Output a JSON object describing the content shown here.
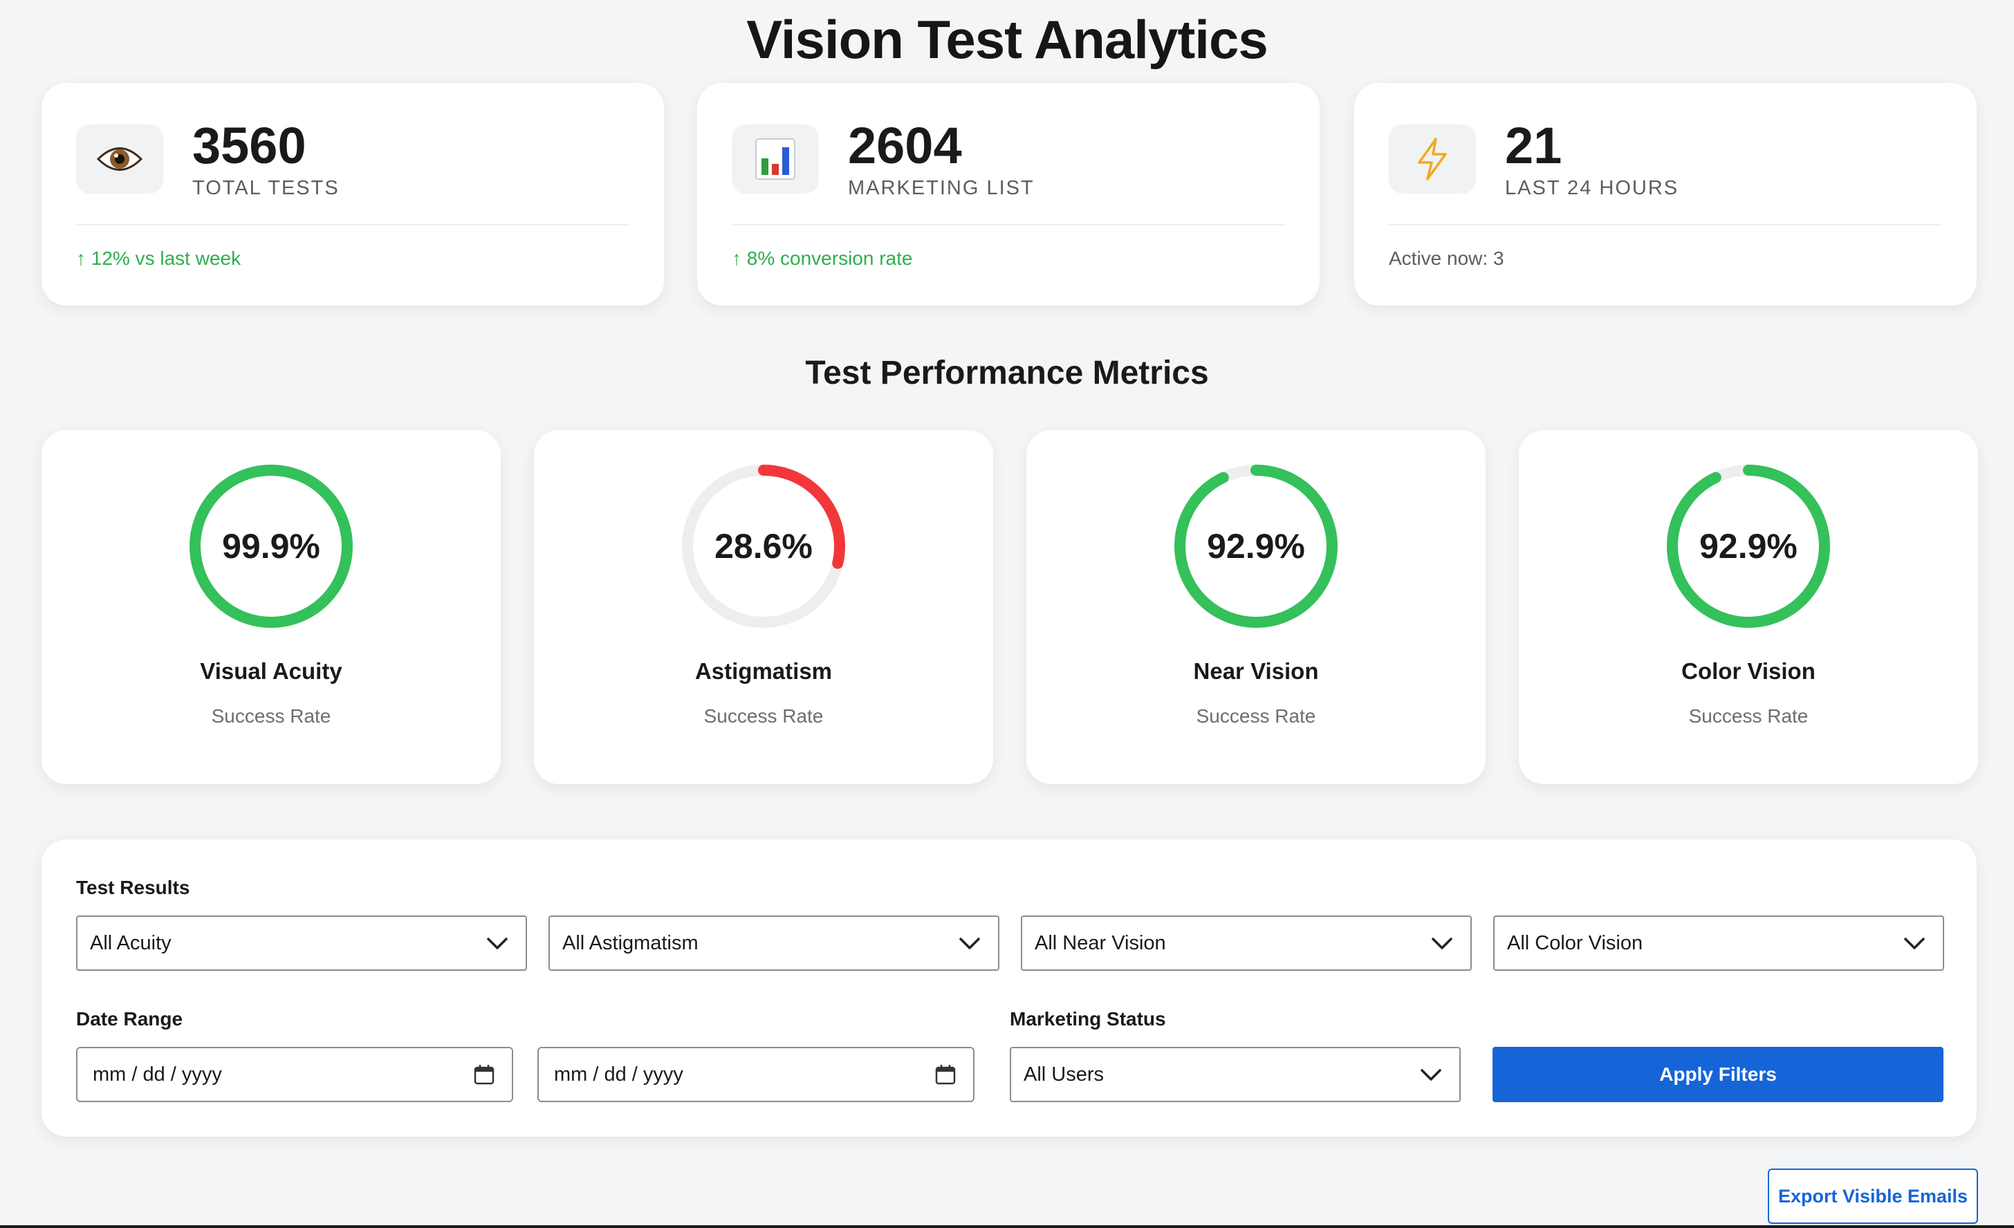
{
  "header": {
    "title": "Vision Test Analytics"
  },
  "stats": [
    {
      "icon": "eye-icon",
      "value": "3560",
      "label": "TOTAL TESTS",
      "footer": "↑ 12% vs last week",
      "footer_style": "green"
    },
    {
      "icon": "bar-chart-icon",
      "value": "2604",
      "label": "MARKETING LIST",
      "footer": "↑ 8% conversion rate",
      "footer_style": "green"
    },
    {
      "icon": "lightning-icon",
      "value": "21",
      "label": "LAST 24 HOURS",
      "footer": "Active now: 3",
      "footer_style": "gray"
    }
  ],
  "metrics_section": {
    "title": "Test Performance Metrics"
  },
  "metrics": [
    {
      "name": "Visual Acuity",
      "subtitle": "Success Rate",
      "value_text": "99.9%",
      "percent": 99.9,
      "color": "#34c05a"
    },
    {
      "name": "Astigmatism",
      "subtitle": "Success Rate",
      "value_text": "28.6%",
      "percent": 28.6,
      "color": "#f2373a"
    },
    {
      "name": "Near Vision",
      "subtitle": "Success Rate",
      "value_text": "92.9%",
      "percent": 92.9,
      "color": "#34c05a"
    },
    {
      "name": "Color Vision",
      "subtitle": "Success Rate",
      "value_text": "92.9%",
      "percent": 92.9,
      "color": "#34c05a"
    }
  ],
  "filters": {
    "test_results_label": "Test Results",
    "acuity": "All Acuity",
    "astigmatism": "All Astigmatism",
    "near_vision": "All Near Vision",
    "color_vision": "All Color Vision",
    "date_range_label": "Date Range",
    "date_from_placeholder": "mm / dd / yyyy",
    "date_to_placeholder": "mm / dd / yyyy",
    "marketing_label": "Marketing Status",
    "marketing": "All Users",
    "apply_label": "Apply Filters"
  },
  "export": {
    "label": "Export Visible Emails"
  },
  "colors": {
    "accent": "#1565d8",
    "success": "#2fae4f",
    "danger": "#f2373a",
    "track": "#eeeeee"
  }
}
